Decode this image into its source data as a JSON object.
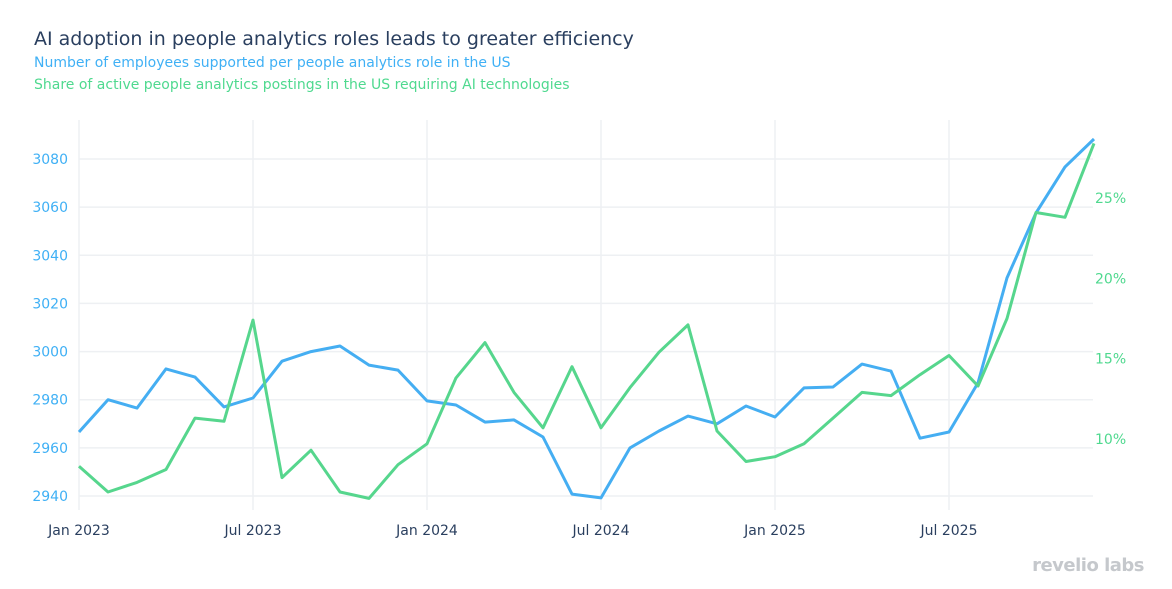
{
  "chart_data": {
    "type": "line",
    "title": "AI adoption in people analytics roles leads to greater efficiency",
    "subtitles": [
      "Number of employees supported per people analytics role in the US",
      "Share of active people analytics postings in the US requiring AI technologies"
    ],
    "x": [
      "2023-01",
      "2023-02",
      "2023-03",
      "2023-04",
      "2023-05",
      "2023-06",
      "2023-07",
      "2023-08",
      "2023-09",
      "2023-10",
      "2023-11",
      "2023-12",
      "2024-01",
      "2024-02",
      "2024-03",
      "2024-04",
      "2024-05",
      "2024-06",
      "2024-07",
      "2024-08",
      "2024-09",
      "2024-10",
      "2024-11",
      "2024-12",
      "2025-01",
      "2025-02",
      "2025-03",
      "2025-04",
      "2025-05",
      "2025-06",
      "2025-07",
      "2025-08",
      "2025-09",
      "2025-10",
      "2025-11",
      "2025-12"
    ],
    "x_ticks": [
      "Jan 2023",
      "Jul 2023",
      "Jan 2024",
      "Jul 2024",
      "Jan 2025",
      "Jul 2025"
    ],
    "y_left": {
      "ticks": [
        "2940",
        "2960",
        "2980",
        "3000",
        "3020",
        "3040",
        "3060",
        "3080"
      ],
      "range": [
        2934,
        3091
      ],
      "color": "#3fb0f5"
    },
    "y_right": {
      "ticks": [
        "10%",
        "15%",
        "20%",
        "25%"
      ],
      "range": [
        5.6,
        29
      ],
      "color": "#4fd98f"
    },
    "grid": true,
    "series": [
      {
        "axis": "left",
        "color": "#45aef2",
        "values": [
          2966.6,
          2980,
          2976.5,
          2992.8,
          2989.4,
          2977,
          2980.7,
          2996,
          3000,
          3002.3,
          2994.4,
          2992.3,
          2979.5,
          2977.8,
          2970.7,
          2971.6,
          2964.5,
          2940.8,
          2939.2,
          2960,
          2967,
          2973.2,
          2970,
          2977.4,
          2972.8,
          2984.9,
          2985.3,
          2994.8,
          2991.9,
          2964,
          2966.6,
          2987,
          3030.6,
          3057.6,
          3076.7,
          3088.3
        ]
      },
      {
        "axis": "right",
        "color": "#56d68d",
        "values": [
          8.3,
          6.7,
          7.3,
          8.1,
          11.3,
          11.1,
          17.4,
          7.6,
          9.3,
          6.7,
          6.3,
          8.4,
          9.7,
          13.8,
          16.0,
          12.9,
          10.7,
          14.5,
          10.7,
          13.2,
          15.4,
          17.1,
          10.5,
          8.6,
          8.9,
          9.7,
          11.3,
          12.9,
          12.7,
          14.0,
          15.2,
          13.3,
          17.5,
          24.1,
          23.8,
          28.4
        ]
      }
    ]
  },
  "logo": "revelio labs"
}
